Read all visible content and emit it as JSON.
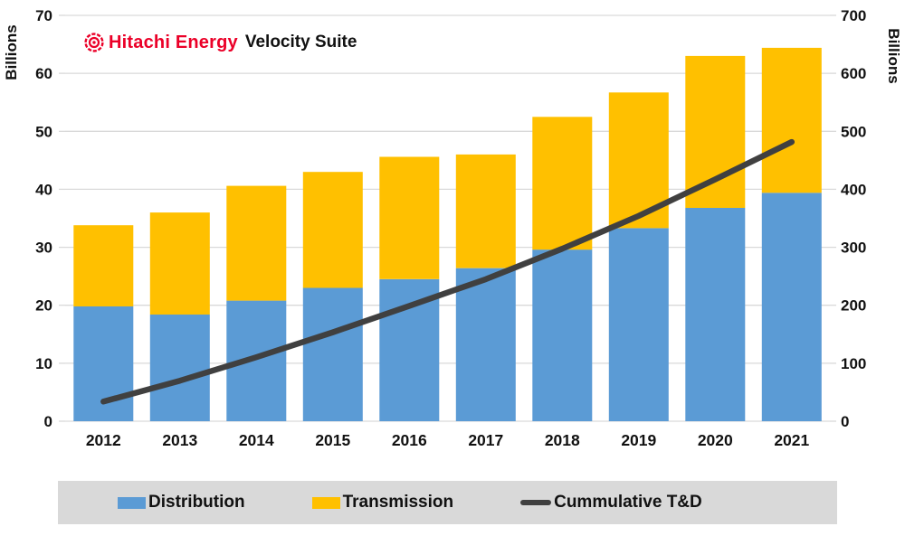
{
  "header": {
    "brand": "Hitachi Energy",
    "product": "Velocity Suite",
    "brand_color": "#EB0028"
  },
  "chart_data": {
    "type": "combo-stacked-bar-line",
    "categories": [
      "2012",
      "2013",
      "2014",
      "2015",
      "2016",
      "2017",
      "2018",
      "2019",
      "2020",
      "2021"
    ],
    "series": [
      {
        "name": "Distribution",
        "type": "bar",
        "axis": "left",
        "color": "#5B9BD5",
        "values": [
          19.8,
          18.4,
          20.8,
          23.0,
          24.5,
          26.4,
          29.6,
          33.3,
          36.8,
          39.4
        ]
      },
      {
        "name": "Transmission",
        "type": "bar",
        "axis": "left",
        "color": "#FFC000",
        "values": [
          14.0,
          17.6,
          19.8,
          20.0,
          21.1,
          19.6,
          22.9,
          23.4,
          26.2,
          25.0
        ]
      },
      {
        "name": "Cummulative T&D",
        "type": "line",
        "axis": "right",
        "color": "#404040",
        "values": [
          33.8,
          69.8,
          110.4,
          153.4,
          199.0,
          245.0,
          297.5,
          354.2,
          417.2,
          481.6
        ]
      }
    ],
    "stacked_totals": [
      33.8,
      36.0,
      40.6,
      43.0,
      45.6,
      46.0,
      52.5,
      56.7,
      63.0,
      64.4
    ],
    "left_axis": {
      "label": "Billions",
      "min": 0,
      "max": 70,
      "tick_step": 10,
      "ticks": [
        0,
        10,
        20,
        30,
        40,
        50,
        60,
        70
      ]
    },
    "right_axis": {
      "label": "Billions",
      "min": 0,
      "max": 700,
      "tick_step": 100,
      "ticks": [
        0,
        100,
        200,
        300,
        400,
        500,
        600,
        700
      ]
    },
    "grid": true,
    "gridline_color": "#D9D9D9",
    "legend_position": "bottom"
  },
  "legend": {
    "items": [
      {
        "label": "Distribution",
        "swatch": "rect",
        "color": "#5B9BD5"
      },
      {
        "label": "Transmission",
        "swatch": "rect",
        "color": "#FFC000"
      },
      {
        "label": "Cummulative T&D",
        "swatch": "line",
        "color": "#404040"
      }
    ]
  }
}
